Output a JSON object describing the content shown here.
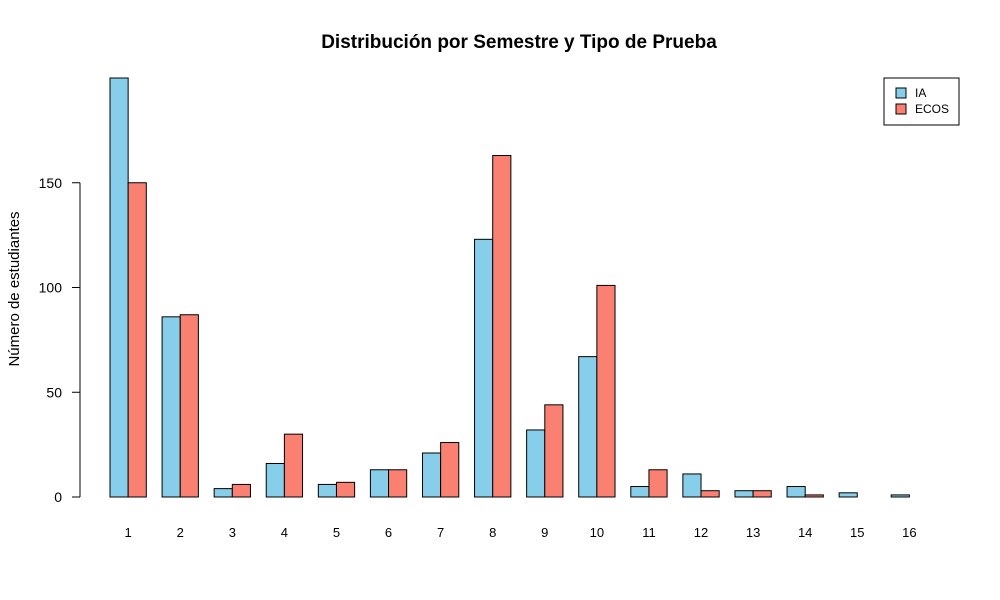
{
  "chart_data": {
    "type": "bar",
    "title": "Distribución por Semestre y Tipo de Prueba",
    "xlabel": "",
    "ylabel": "Número de estudiantes",
    "categories": [
      "1",
      "2",
      "3",
      "4",
      "5",
      "6",
      "7",
      "8",
      "9",
      "10",
      "11",
      "12",
      "13",
      "14",
      "15",
      "16"
    ],
    "series": [
      {
        "name": "IA",
        "color": "#87CEEB",
        "values": [
          200,
          86,
          4,
          16,
          6,
          13,
          21,
          123,
          32,
          67,
          5,
          11,
          3,
          5,
          2,
          1
        ]
      },
      {
        "name": "ECOS",
        "color": "#FA8072",
        "values": [
          150,
          87,
          6,
          30,
          7,
          13,
          26,
          163,
          44,
          101,
          13,
          3,
          3,
          1,
          0,
          0
        ]
      }
    ],
    "yticks": [
      0,
      50,
      100,
      150
    ],
    "ylim": [
      0,
      200
    ],
    "grid": false,
    "legend_position": "top-right"
  }
}
